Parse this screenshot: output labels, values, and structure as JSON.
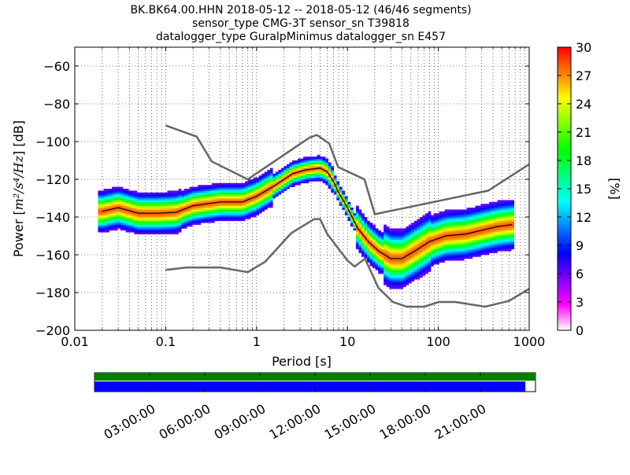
{
  "title": {
    "line1": "BK.BK64.00.HHN   2018-05-12 -- 2018-05-12  (46/46 segments)",
    "line2": "sensor_type CMG-3T sensor_sn T39818",
    "line3": "datalogger_type GuralpMinimus datalogger_sn E457"
  },
  "chart_data": {
    "type": "heatmap",
    "title": "BK.BK64.00.HHN   2018-05-12 -- 2018-05-12  (46/46 segments)",
    "xlabel": "Period [s]",
    "ylabel_prefix": "Power [",
    "ylabel_units": "m²/s⁴/Hz",
    "ylabel_suffix": "] [dB]",
    "x_scale": "log",
    "xlim": [
      0.01,
      1000
    ],
    "ylim": [
      -200,
      -50
    ],
    "x_ticks": [
      {
        "value": 0.01,
        "label": "0.01"
      },
      {
        "value": 0.1,
        "label": "0.1"
      },
      {
        "value": 1,
        "label": "1"
      },
      {
        "value": 10,
        "label": "10"
      },
      {
        "value": 100,
        "label": "100"
      },
      {
        "value": 1000,
        "label": "1000"
      }
    ],
    "y_ticks": [
      {
        "value": -60,
        "label": "−60"
      },
      {
        "value": -80,
        "label": "−80"
      },
      {
        "value": -100,
        "label": "−100"
      },
      {
        "value": -120,
        "label": "−120"
      },
      {
        "value": -140,
        "label": "−140"
      },
      {
        "value": -160,
        "label": "−160"
      },
      {
        "value": -180,
        "label": "−180"
      },
      {
        "value": -200,
        "label": "−200"
      }
    ],
    "grid": true,
    "noise_model_high": [
      [
        0.1,
        -91.5
      ],
      [
        0.22,
        -97.4
      ],
      [
        0.32,
        -110.5
      ],
      [
        0.8,
        -120
      ],
      [
        3.8,
        -98
      ],
      [
        4.6,
        -96.5
      ],
      [
        6.3,
        -101
      ],
      [
        7.9,
        -113.5
      ],
      [
        15.4,
        -120
      ],
      [
        20,
        -138.5
      ],
      [
        354,
        -126
      ],
      [
        1000,
        -112
      ]
    ],
    "noise_model_low": [
      [
        0.1,
        -168
      ],
      [
        0.17,
        -166.7
      ],
      [
        0.4,
        -166.7
      ],
      [
        0.8,
        -169.2
      ],
      [
        1.24,
        -163.7
      ],
      [
        2.4,
        -148.6
      ],
      [
        4.3,
        -141.1
      ],
      [
        5,
        -141.1
      ],
      [
        6,
        -149
      ],
      [
        10,
        -163
      ],
      [
        12,
        -166.2
      ],
      [
        15.6,
        -162.1
      ],
      [
        21.9,
        -177.5
      ],
      [
        31.6,
        -185
      ],
      [
        45,
        -187.5
      ],
      [
        70,
        -187.5
      ],
      [
        101,
        -185
      ],
      [
        154,
        -185
      ],
      [
        328,
        -187.5
      ],
      [
        600,
        -184.4
      ],
      [
        1000,
        -178
      ]
    ],
    "mode_curve": [
      [
        0.02,
        -137
      ],
      [
        0.03,
        -135
      ],
      [
        0.05,
        -138
      ],
      [
        0.08,
        -138
      ],
      [
        0.13,
        -137.5
      ],
      [
        0.2,
        -134
      ],
      [
        0.4,
        -132
      ],
      [
        0.7,
        -132
      ],
      [
        1,
        -129
      ],
      [
        1.5,
        -124
      ],
      [
        2.5,
        -117
      ],
      [
        3.5,
        -115
      ],
      [
        5,
        -114
      ],
      [
        6,
        -116
      ],
      [
        7,
        -121
      ],
      [
        8,
        -127
      ],
      [
        10,
        -135
      ],
      [
        13,
        -146
      ],
      [
        17,
        -153
      ],
      [
        22,
        -158
      ],
      [
        30,
        -162
      ],
      [
        40,
        -162
      ],
      [
        55,
        -158
      ],
      [
        80,
        -153
      ],
      [
        120,
        -150
      ],
      [
        200,
        -149
      ],
      [
        300,
        -147
      ],
      [
        450,
        -145
      ],
      [
        650,
        -144
      ]
    ],
    "colorbar": {
      "label": "[%]",
      "range": [
        0,
        30
      ],
      "ticks": [
        {
          "value": 0,
          "label": "0"
        },
        {
          "value": 3,
          "label": "3"
        },
        {
          "value": 6,
          "label": "6"
        },
        {
          "value": 9,
          "label": "9"
        },
        {
          "value": 12,
          "label": "12"
        },
        {
          "value": 15,
          "label": "15"
        },
        {
          "value": 18,
          "label": "18"
        },
        {
          "value": 21,
          "label": "21"
        },
        {
          "value": 24,
          "label": "24"
        },
        {
          "value": 27,
          "label": "27"
        },
        {
          "value": 30,
          "label": "30"
        }
      ],
      "colormap": [
        "#ffffff",
        "#ff00ff",
        "#8000ff",
        "#0000ff",
        "#0080ff",
        "#00ffff",
        "#00ff80",
        "#00ff00",
        "#80ff00",
        "#ffff00",
        "#ff8000",
        "#ff0000"
      ]
    },
    "noise_model_color": "#666666",
    "mode_color": "#000000"
  },
  "timeline": {
    "labels": [
      "03:00:00",
      "06:00:00",
      "09:00:00",
      "12:00:00",
      "15:00:00",
      "18:00:00",
      "21:00:00"
    ],
    "label_hours": [
      3,
      6,
      9,
      12,
      15,
      18,
      21
    ],
    "data_available_fraction": [
      0,
      1
    ],
    "used_fraction": [
      0,
      0.977
    ],
    "available_color": "#008000",
    "used_color": "#0000ff"
  }
}
